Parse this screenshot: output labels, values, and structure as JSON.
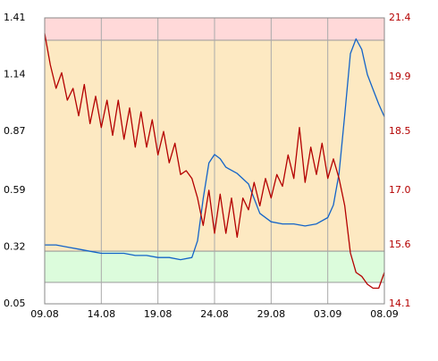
{
  "chart_data": {
    "type": "line",
    "xlim": [
      0,
      30
    ],
    "xticks": [
      {
        "value": 0,
        "label": "09.08"
      },
      {
        "value": 5,
        "label": "14.08"
      },
      {
        "value": 10,
        "label": "19.08"
      },
      {
        "value": 15,
        "label": "24.08"
      },
      {
        "value": 20,
        "label": "29.08"
      },
      {
        "value": 25,
        "label": "03.09"
      },
      {
        "value": 30,
        "label": "08.09"
      }
    ],
    "ylim": [
      0.05,
      1.41
    ],
    "yticks": [
      0.05,
      0.32,
      0.59,
      0.87,
      1.14,
      1.41
    ],
    "y2lim": [
      14.1,
      21.4
    ],
    "y2ticks": [
      14.1,
      15.6,
      {
        "value": 17,
        "label": "17.0"
      },
      18.5,
      19.9,
      21.4
    ],
    "grid": true,
    "bands": [
      {
        "lower": 1.304,
        "upper": 1.41,
        "color": "#ffd9d9"
      },
      {
        "lower": 0.3,
        "upper": 1.304,
        "color": "#fde9c2"
      },
      {
        "lower": 0.152,
        "upper": 0.3,
        "color": "#dcfcdc"
      }
    ],
    "series": [
      {
        "color": "#1464c8",
        "axis": "y",
        "x": [
          0,
          1,
          2,
          3,
          4,
          5,
          6,
          7,
          8,
          9,
          10,
          11,
          12,
          13,
          13.5,
          14,
          14.5,
          15,
          15.5,
          16,
          17,
          18,
          19,
          20,
          21,
          22,
          23,
          24,
          25,
          25.5,
          26,
          26.5,
          27,
          27.5,
          28,
          28.5,
          29,
          29.5,
          30
        ],
        "values": [
          0.33,
          0.33,
          0.32,
          0.31,
          0.3,
          0.29,
          0.29,
          0.29,
          0.28,
          0.28,
          0.27,
          0.27,
          0.26,
          0.27,
          0.35,
          0.55,
          0.72,
          0.76,
          0.74,
          0.7,
          0.67,
          0.62,
          0.48,
          0.44,
          0.43,
          0.43,
          0.42,
          0.43,
          0.46,
          0.52,
          0.67,
          0.95,
          1.24,
          1.31,
          1.26,
          1.14,
          1.07,
          1.0,
          0.94
        ]
      },
      {
        "color": "#b40000",
        "axis": "y2",
        "x": [
          0,
          0.5,
          1,
          1.5,
          2,
          2.5,
          3,
          3.5,
          4,
          4.5,
          5,
          5.5,
          6,
          6.5,
          7,
          7.5,
          8,
          8.5,
          9,
          9.5,
          10,
          10.5,
          11,
          11.5,
          12,
          12.5,
          13,
          13.5,
          14,
          14.5,
          15,
          15.5,
          16,
          16.5,
          17,
          17.5,
          18,
          18.5,
          19,
          19.5,
          20,
          20.5,
          21,
          21.5,
          22,
          22.5,
          23,
          23.5,
          24,
          24.5,
          25,
          25.5,
          26,
          26.5,
          27,
          27.5,
          28,
          28.5,
          29,
          29.5,
          30
        ],
        "values": [
          21.0,
          20.2,
          19.6,
          20.0,
          19.3,
          19.6,
          18.9,
          19.7,
          18.7,
          19.4,
          18.6,
          19.3,
          18.4,
          19.3,
          18.3,
          19.1,
          18.1,
          19.0,
          18.1,
          18.8,
          17.9,
          18.5,
          17.7,
          18.2,
          17.4,
          17.5,
          17.3,
          16.8,
          16.1,
          17.0,
          15.9,
          16.9,
          15.9,
          16.8,
          15.8,
          16.8,
          16.5,
          17.2,
          16.6,
          17.3,
          16.8,
          17.4,
          17.1,
          17.9,
          17.3,
          18.6,
          17.2,
          18.1,
          17.4,
          18.2,
          17.3,
          17.8,
          17.3,
          16.6,
          15.4,
          14.9,
          14.8,
          14.6,
          14.5,
          14.5,
          14.9
        ]
      }
    ]
  }
}
